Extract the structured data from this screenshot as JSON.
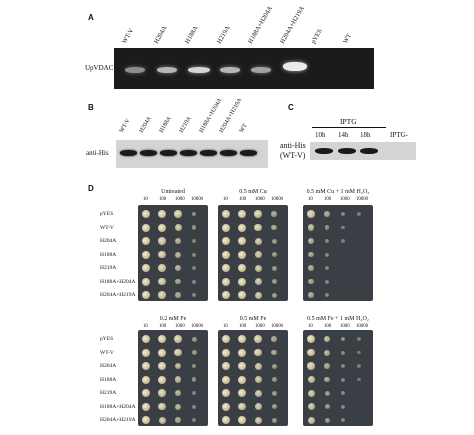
{
  "panelA": {
    "letter": "A",
    "row_label": "UpVDAC",
    "lanes": [
      "WT-V",
      "H204A",
      "H188A",
      "H219A",
      "H188A+H204A",
      "H204A+H219A",
      "pYES",
      "WT"
    ]
  },
  "panelB": {
    "letter": "B",
    "row_label": "anti-His",
    "lanes": [
      "WT-V",
      "H204A",
      "H188A",
      "H219A",
      "H188A+H204A",
      "H204A+H219A",
      "WT"
    ]
  },
  "panelC": {
    "letter": "C",
    "header": "IPTG",
    "row_label_1": "anti-His",
    "row_label_2": "(WT-V)",
    "times": [
      "10h",
      "14h",
      "18h"
    ],
    "neg": "IPTG-"
  },
  "panelD": {
    "letter": "D",
    "dilutions": [
      "10",
      "100",
      "1000",
      "10000"
    ],
    "strains_top": [
      "pYES",
      "WT-V",
      "H204A",
      "H188A",
      "H219A",
      "H188A+H204A",
      "H204A+H219A"
    ],
    "strains_bottom": [
      "pYES",
      "WT-V",
      "H204A",
      "H188A",
      "H219A",
      "H188A+H204A",
      "H204A+H219A"
    ],
    "conditions_top": [
      "Untreated",
      "0.5 mM Cu",
      "0.5 mM Cu + 1 mM H₂O₂"
    ],
    "conditions_bottom": [
      "0.2 mM Fe",
      "0.5 mM Fe",
      "0.5 mM Fe + 1 mM H₂O₂"
    ]
  }
}
